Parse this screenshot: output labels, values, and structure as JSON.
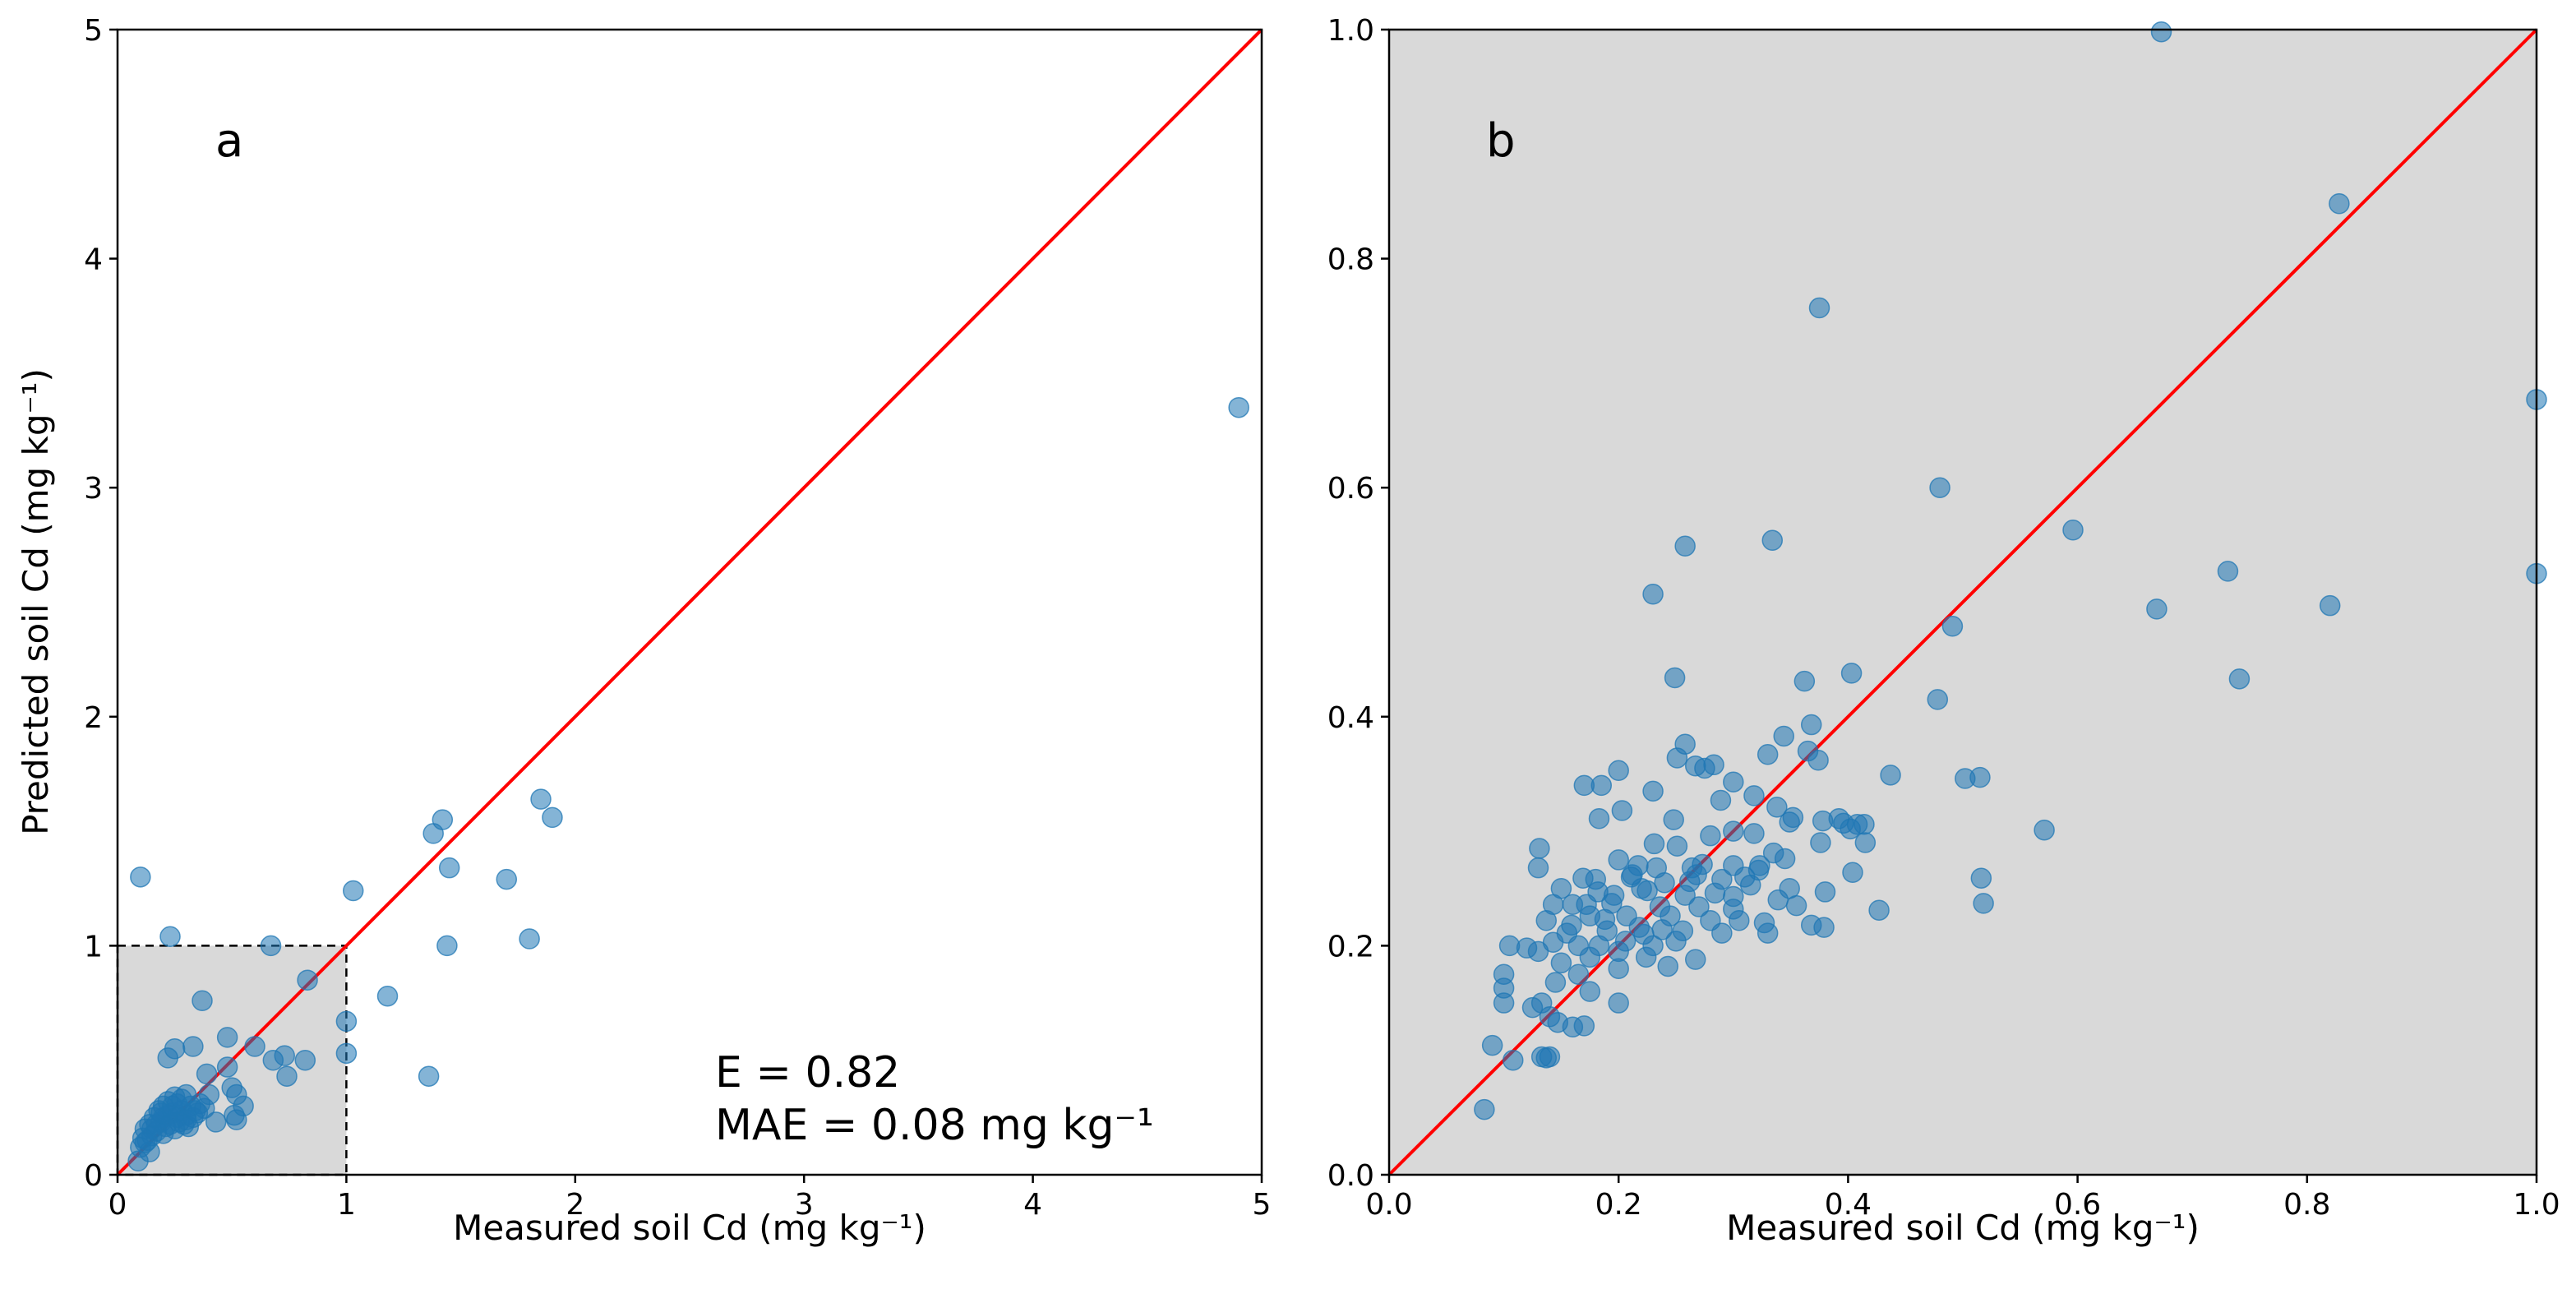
{
  "chart_data": [
    {
      "type": "scatter",
      "panel_label": "a",
      "xlabel": "Measured soil Cd (mg kg⁻¹)",
      "ylabel": "Predicted soil Cd (mg kg⁻¹)",
      "xlim": [
        0,
        5
      ],
      "ylim": [
        0,
        5
      ],
      "xticks": [
        "0",
        "1",
        "2",
        "3",
        "4",
        "5"
      ],
      "yticks": [
        "0",
        "1",
        "2",
        "3",
        "4",
        "5"
      ],
      "grid": false,
      "reference_line": "1:1",
      "inset_box": {
        "x": [
          0,
          1
        ],
        "y": [
          0,
          1
        ]
      },
      "annotations": [
        "E = 0.82",
        "MAE = 0.08 mg kg⁻¹"
      ],
      "points": [
        [
          4.9,
          3.35
        ],
        [
          1.85,
          1.64
        ],
        [
          1.9,
          1.56
        ],
        [
          1.42,
          1.55
        ],
        [
          1.38,
          1.49
        ],
        [
          1.45,
          1.34
        ],
        [
          1.7,
          1.29
        ],
        [
          1.03,
          1.24
        ],
        [
          1.8,
          1.03
        ],
        [
          1.44,
          1.0
        ],
        [
          1.18,
          0.78
        ],
        [
          1.0,
          0.67
        ],
        [
          1.0,
          0.53
        ],
        [
          1.36,
          0.43
        ],
        [
          0.1,
          1.3
        ],
        [
          0.23,
          1.04
        ],
        [
          0.67,
          1.0
        ],
        [
          0.83,
          0.85
        ],
        [
          0.37,
          0.76
        ],
        [
          0.48,
          0.6
        ],
        [
          0.6,
          0.56
        ],
        [
          0.33,
          0.56
        ],
        [
          0.25,
          0.55
        ],
        [
          0.22,
          0.51
        ],
        [
          0.48,
          0.47
        ],
        [
          0.73,
          0.52
        ],
        [
          0.68,
          0.5
        ],
        [
          0.82,
          0.5
        ],
        [
          0.74,
          0.43
        ],
        [
          0.5,
          0.38
        ],
        [
          0.52,
          0.35
        ],
        [
          0.39,
          0.44
        ],
        [
          0.4,
          0.35
        ],
        [
          0.55,
          0.3
        ],
        [
          0.52,
          0.24
        ],
        [
          0.51,
          0.26
        ],
        [
          0.43,
          0.23
        ],
        [
          0.1,
          0.12
        ],
        [
          0.09,
          0.06
        ],
        [
          0.14,
          0.1
        ],
        [
          0.13,
          0.15
        ],
        [
          0.12,
          0.2
        ],
        [
          0.15,
          0.2
        ],
        [
          0.17,
          0.22
        ],
        [
          0.19,
          0.23
        ],
        [
          0.2,
          0.25
        ],
        [
          0.22,
          0.26
        ],
        [
          0.24,
          0.27
        ],
        [
          0.26,
          0.25
        ],
        [
          0.28,
          0.28
        ],
        [
          0.3,
          0.26
        ],
        [
          0.32,
          0.3
        ],
        [
          0.34,
          0.28
        ],
        [
          0.36,
          0.31
        ],
        [
          0.2,
          0.3
        ],
        [
          0.18,
          0.28
        ],
        [
          0.22,
          0.32
        ],
        [
          0.25,
          0.34
        ],
        [
          0.28,
          0.33
        ],
        [
          0.3,
          0.35
        ],
        [
          0.15,
          0.17
        ],
        [
          0.17,
          0.19
        ],
        [
          0.21,
          0.21
        ],
        [
          0.23,
          0.22
        ],
        [
          0.27,
          0.23
        ],
        [
          0.29,
          0.22
        ],
        [
          0.31,
          0.21
        ],
        [
          0.33,
          0.25
        ],
        [
          0.35,
          0.27
        ],
        [
          0.38,
          0.29
        ],
        [
          0.16,
          0.25
        ],
        [
          0.14,
          0.22
        ],
        [
          0.19,
          0.27
        ],
        [
          0.24,
          0.3
        ],
        [
          0.26,
          0.31
        ],
        [
          0.2,
          0.18
        ],
        [
          0.25,
          0.2
        ],
        [
          0.3,
          0.24
        ],
        [
          0.12,
          0.14
        ],
        [
          0.11,
          0.16
        ]
      ]
    },
    {
      "type": "scatter",
      "panel_label": "b",
      "xlabel": "Measured soil Cd (mg kg⁻¹)",
      "ylabel": "",
      "xlim": [
        0,
        1
      ],
      "ylim": [
        0,
        1
      ],
      "xticks": [
        "0.0",
        "0.2",
        "0.4",
        "0.6",
        "0.8",
        "1.0"
      ],
      "yticks": [
        "0.0",
        "0.2",
        "0.4",
        "0.6",
        "0.8",
        "1.0"
      ],
      "grid": false,
      "background": "#d9d9d9",
      "reference_line": "1:1",
      "points": [
        [
          0.673,
          0.998
        ],
        [
          0.828,
          0.848
        ],
        [
          0.375,
          0.757
        ],
        [
          1.0,
          0.677
        ],
        [
          0.48,
          0.6
        ],
        [
          0.596,
          0.563
        ],
        [
          0.334,
          0.554
        ],
        [
          0.258,
          0.549
        ],
        [
          0.731,
          0.527
        ],
        [
          1.0,
          0.525
        ],
        [
          0.23,
          0.507
        ],
        [
          0.669,
          0.494
        ],
        [
          0.82,
          0.497
        ],
        [
          0.491,
          0.479
        ],
        [
          0.741,
          0.433
        ],
        [
          0.249,
          0.434
        ],
        [
          0.403,
          0.438
        ],
        [
          0.362,
          0.431
        ],
        [
          0.478,
          0.415
        ],
        [
          0.368,
          0.393
        ],
        [
          0.344,
          0.383
        ],
        [
          0.258,
          0.376
        ],
        [
          0.33,
          0.367
        ],
        [
          0.374,
          0.362
        ],
        [
          0.251,
          0.364
        ],
        [
          0.365,
          0.37
        ],
        [
          0.267,
          0.357
        ],
        [
          0.275,
          0.355
        ],
        [
          0.283,
          0.358
        ],
        [
          0.437,
          0.349
        ],
        [
          0.2,
          0.353
        ],
        [
          0.502,
          0.346
        ],
        [
          0.515,
          0.347
        ],
        [
          0.185,
          0.34
        ],
        [
          0.17,
          0.34
        ],
        [
          0.23,
          0.335
        ],
        [
          0.3,
          0.343
        ],
        [
          0.289,
          0.327
        ],
        [
          0.318,
          0.331
        ],
        [
          0.338,
          0.321
        ],
        [
          0.248,
          0.31
        ],
        [
          0.203,
          0.318
        ],
        [
          0.183,
          0.311
        ],
        [
          0.352,
          0.312
        ],
        [
          0.378,
          0.309
        ],
        [
          0.396,
          0.307
        ],
        [
          0.408,
          0.306
        ],
        [
          0.392,
          0.311
        ],
        [
          0.349,
          0.308
        ],
        [
          0.402,
          0.302
        ],
        [
          0.414,
          0.306
        ],
        [
          0.571,
          0.301
        ],
        [
          0.318,
          0.298
        ],
        [
          0.28,
          0.296
        ],
        [
          0.3,
          0.3
        ],
        [
          0.415,
          0.29
        ],
        [
          0.376,
          0.29
        ],
        [
          0.251,
          0.287
        ],
        [
          0.231,
          0.289
        ],
        [
          0.131,
          0.285
        ],
        [
          0.335,
          0.281
        ],
        [
          0.2,
          0.275
        ],
        [
          0.217,
          0.27
        ],
        [
          0.273,
          0.271
        ],
        [
          0.3,
          0.27
        ],
        [
          0.323,
          0.27
        ],
        [
          0.13,
          0.268
        ],
        [
          0.404,
          0.264
        ],
        [
          0.516,
          0.259
        ],
        [
          0.169,
          0.259
        ],
        [
          0.18,
          0.258
        ],
        [
          0.211,
          0.26
        ],
        [
          0.24,
          0.255
        ],
        [
          0.262,
          0.256
        ],
        [
          0.29,
          0.258
        ],
        [
          0.315,
          0.253
        ],
        [
          0.349,
          0.25
        ],
        [
          0.38,
          0.247
        ],
        [
          0.15,
          0.25
        ],
        [
          0.182,
          0.247
        ],
        [
          0.22,
          0.25
        ],
        [
          0.258,
          0.244
        ],
        [
          0.3,
          0.243
        ],
        [
          0.339,
          0.24
        ],
        [
          0.355,
          0.235
        ],
        [
          0.518,
          0.237
        ],
        [
          0.427,
          0.231
        ],
        [
          0.143,
          0.236
        ],
        [
          0.16,
          0.236
        ],
        [
          0.194,
          0.237
        ],
        [
          0.236,
          0.234
        ],
        [
          0.27,
          0.234
        ],
        [
          0.3,
          0.232
        ],
        [
          0.137,
          0.222
        ],
        [
          0.175,
          0.226
        ],
        [
          0.207,
          0.226
        ],
        [
          0.245,
          0.226
        ],
        [
          0.28,
          0.222
        ],
        [
          0.305,
          0.222
        ],
        [
          0.327,
          0.22
        ],
        [
          0.368,
          0.218
        ],
        [
          0.379,
          0.216
        ],
        [
          0.12,
          0.198
        ],
        [
          0.155,
          0.211
        ],
        [
          0.19,
          0.213
        ],
        [
          0.218,
          0.216
        ],
        [
          0.256,
          0.213
        ],
        [
          0.29,
          0.211
        ],
        [
          0.33,
          0.211
        ],
        [
          0.13,
          0.195
        ],
        [
          0.143,
          0.203
        ],
        [
          0.165,
          0.2
        ],
        [
          0.183,
          0.2
        ],
        [
          0.206,
          0.204
        ],
        [
          0.23,
          0.2
        ],
        [
          0.25,
          0.204
        ],
        [
          0.105,
          0.2
        ],
        [
          0.15,
          0.185
        ],
        [
          0.175,
          0.19
        ],
        [
          0.2,
          0.195
        ],
        [
          0.224,
          0.19
        ],
        [
          0.267,
          0.188
        ],
        [
          0.145,
          0.168
        ],
        [
          0.165,
          0.175
        ],
        [
          0.2,
          0.18
        ],
        [
          0.243,
          0.182
        ],
        [
          0.175,
          0.16
        ],
        [
          0.2,
          0.15
        ],
        [
          0.133,
          0.15
        ],
        [
          0.125,
          0.146
        ],
        [
          0.1,
          0.175
        ],
        [
          0.1,
          0.163
        ],
        [
          0.1,
          0.15
        ],
        [
          0.14,
          0.138
        ],
        [
          0.147,
          0.133
        ],
        [
          0.16,
          0.129
        ],
        [
          0.17,
          0.13
        ],
        [
          0.09,
          0.113
        ],
        [
          0.108,
          0.1
        ],
        [
          0.133,
          0.103
        ],
        [
          0.137,
          0.102
        ],
        [
          0.14,
          0.103
        ],
        [
          0.083,
          0.057
        ],
        [
          0.212,
          0.262
        ],
        [
          0.225,
          0.248
        ],
        [
          0.233,
          0.268
        ],
        [
          0.264,
          0.268
        ],
        [
          0.284,
          0.246
        ],
        [
          0.196,
          0.244
        ],
        [
          0.172,
          0.236
        ],
        [
          0.159,
          0.218
        ],
        [
          0.188,
          0.223
        ],
        [
          0.222,
          0.21
        ],
        [
          0.238,
          0.214
        ],
        [
          0.268,
          0.262
        ],
        [
          0.31,
          0.26
        ],
        [
          0.322,
          0.266
        ],
        [
          0.345,
          0.276
        ]
      ]
    }
  ]
}
